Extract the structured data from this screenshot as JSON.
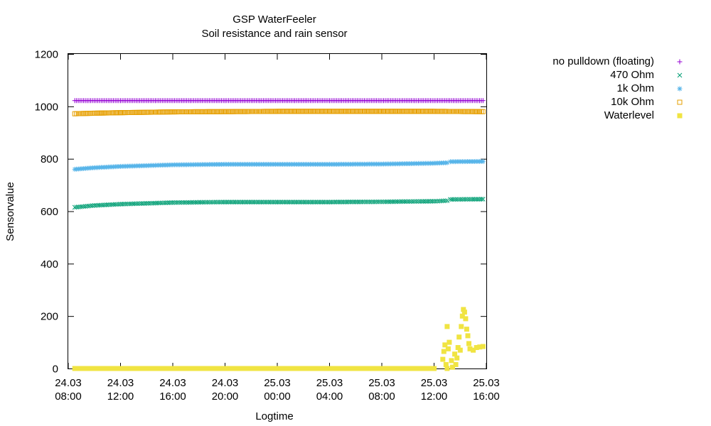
{
  "chart_data": {
    "type": "scatter",
    "title": "GSP WaterFeeler",
    "subtitle": "Soil resistance and rain sensor",
    "xlabel": "Logtime",
    "ylabel": "Sensorvalue",
    "xlim": [
      "24.03 08:00",
      "25.03 16:00"
    ],
    "ylim": [
      0,
      1200
    ],
    "grid": false,
    "legend_position": "right, outside",
    "xticks": [
      {
        "date": "24.03",
        "time": "08:00"
      },
      {
        "date": "24.03",
        "time": "12:00"
      },
      {
        "date": "24.03",
        "time": "16:00"
      },
      {
        "date": "24.03",
        "time": "20:00"
      },
      {
        "date": "25.03",
        "time": "00:00"
      },
      {
        "date": "25.03",
        "time": "04:00"
      },
      {
        "date": "25.03",
        "time": "08:00"
      },
      {
        "date": "25.03",
        "time": "12:00"
      },
      {
        "date": "25.03",
        "time": "16:00"
      }
    ],
    "yticks": [
      "0",
      "200",
      "400",
      "600",
      "800",
      "1000",
      "1200"
    ],
    "series": [
      {
        "name": "no pulldown (floating)",
        "marker": "plus",
        "color": "#9400d3",
        "points": [
          [
            "24.03 08:30",
            1022
          ],
          [
            "24.03 12:00",
            1022
          ],
          [
            "24.03 16:00",
            1022
          ],
          [
            "24.03 20:00",
            1022
          ],
          [
            "25.03 00:00",
            1022
          ],
          [
            "25.03 04:00",
            1022
          ],
          [
            "25.03 08:00",
            1022
          ],
          [
            "25.03 12:00",
            1022
          ],
          [
            "25.03 15:45",
            1022
          ]
        ]
      },
      {
        "name": "470 Ohm",
        "marker": "cross",
        "color": "#009e73",
        "points": [
          [
            "24.03 08:30",
            615
          ],
          [
            "24.03 10:00",
            622
          ],
          [
            "24.03 12:00",
            627
          ],
          [
            "24.03 14:00",
            630
          ],
          [
            "24.03 16:00",
            633
          ],
          [
            "24.03 20:00",
            635
          ],
          [
            "25.03 00:00",
            635
          ],
          [
            "25.03 04:00",
            635
          ],
          [
            "25.03 08:00",
            636
          ],
          [
            "25.03 12:00",
            638
          ],
          [
            "25.03 13:00",
            640
          ],
          [
            "25.03 13:15",
            645
          ],
          [
            "25.03 15:45",
            646
          ]
        ]
      },
      {
        "name": "1k Ohm",
        "marker": "star",
        "color": "#56b4e9",
        "points": [
          [
            "24.03 08:30",
            760
          ],
          [
            "24.03 10:00",
            766
          ],
          [
            "24.03 12:00",
            771
          ],
          [
            "24.03 14:00",
            774
          ],
          [
            "24.03 16:00",
            777
          ],
          [
            "24.03 20:00",
            779
          ],
          [
            "25.03 00:00",
            779
          ],
          [
            "25.03 04:00",
            779
          ],
          [
            "25.03 08:00",
            780
          ],
          [
            "25.03 12:00",
            783
          ],
          [
            "25.03 13:00",
            785
          ],
          [
            "25.03 13:15",
            789
          ],
          [
            "25.03 15:45",
            790
          ]
        ]
      },
      {
        "name": "10k Ohm",
        "marker": "square-open",
        "color": "#e69f00",
        "points": [
          [
            "24.03 08:30",
            972
          ],
          [
            "24.03 10:00",
            974
          ],
          [
            "24.03 12:00",
            976
          ],
          [
            "24.03 16:00",
            979
          ],
          [
            "24.03 20:00",
            980
          ],
          [
            "25.03 00:00",
            981
          ],
          [
            "25.03 04:00",
            981
          ],
          [
            "25.03 08:00",
            981
          ],
          [
            "25.03 12:00",
            981
          ],
          [
            "25.03 15:45",
            980
          ]
        ]
      },
      {
        "name": "Waterlevel",
        "marker": "square-filled",
        "color": "#f0e442",
        "points": [
          [
            "24.03 08:30",
            0
          ],
          [
            "24.03 12:00",
            0
          ],
          [
            "24.03 16:00",
            0
          ],
          [
            "24.03 20:00",
            0
          ],
          [
            "25.03 00:00",
            0
          ],
          [
            "25.03 04:00",
            0
          ],
          [
            "25.03 08:00",
            0
          ],
          [
            "25.03 12:00",
            0
          ],
          [
            "25.03 13:00",
            0
          ],
          [
            "25.03 12:40",
            35
          ],
          [
            "25.03 12:45",
            65
          ],
          [
            "25.03 12:50",
            90
          ],
          [
            "25.03 12:55",
            15
          ],
          [
            "25.03 13:00",
            160
          ],
          [
            "25.03 13:05",
            75
          ],
          [
            "25.03 13:10",
            100
          ],
          [
            "25.03 13:20",
            30
          ],
          [
            "25.03 13:25",
            5
          ],
          [
            "25.03 13:35",
            55
          ],
          [
            "25.03 13:40",
            15
          ],
          [
            "25.03 13:45",
            40
          ],
          [
            "25.03 13:50",
            80
          ],
          [
            "25.03 13:55",
            120
          ],
          [
            "25.03 14:00",
            70
          ],
          [
            "25.03 14:05",
            160
          ],
          [
            "25.03 14:10",
            200
          ],
          [
            "25.03 14:15",
            225
          ],
          [
            "25.03 14:20",
            215
          ],
          [
            "25.03 14:25",
            190
          ],
          [
            "25.03 14:30",
            150
          ],
          [
            "25.03 14:35",
            125
          ],
          [
            "25.03 14:40",
            95
          ],
          [
            "25.03 14:45",
            75
          ],
          [
            "25.03 15:00",
            70
          ],
          [
            "25.03 15:15",
            80
          ],
          [
            "25.03 15:30",
            82
          ],
          [
            "25.03 15:45",
            84
          ]
        ]
      }
    ]
  }
}
